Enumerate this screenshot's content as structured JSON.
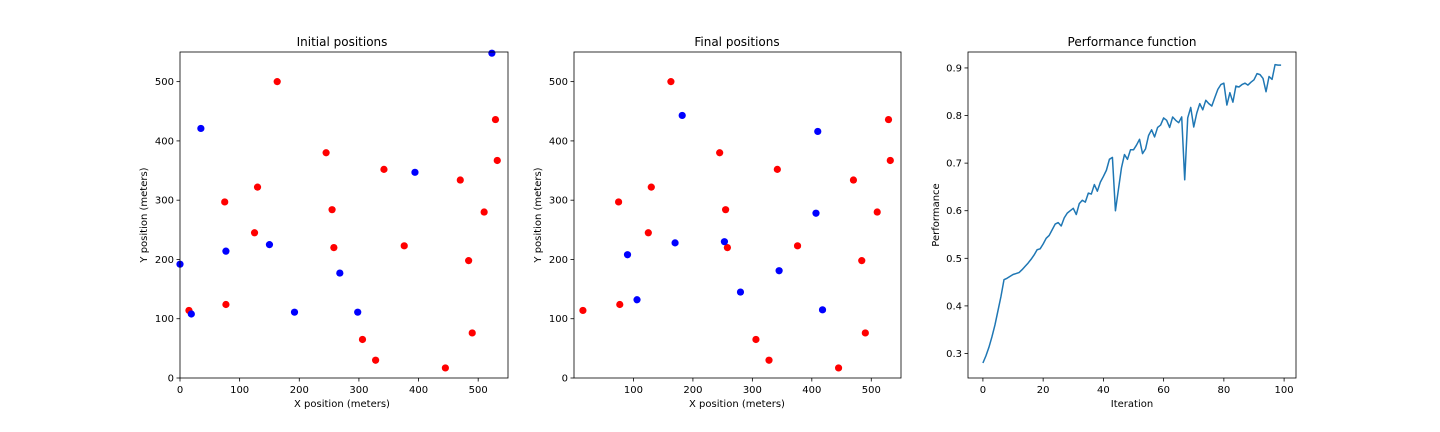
{
  "chart_data": [
    {
      "type": "scatter",
      "title": "Initial positions",
      "xlabel": "X position (meters)",
      "ylabel": "Y position (meters)",
      "xlim": [
        0,
        550
      ],
      "ylim": [
        0,
        550
      ],
      "xticks": [
        0,
        100,
        200,
        300,
        400,
        500
      ],
      "yticks": [
        0,
        100,
        200,
        300,
        400,
        500
      ],
      "series": [
        {
          "color": "#ff0000",
          "points": [
            [
              163,
              500
            ],
            [
              529,
              436
            ],
            [
              245,
              380
            ],
            [
              532,
              367
            ],
            [
              342,
              352
            ],
            [
              130,
              322
            ],
            [
              470,
              334
            ],
            [
              75,
              297
            ],
            [
              255,
              284
            ],
            [
              510,
              280
            ],
            [
              125,
              245
            ],
            [
              376,
              223
            ],
            [
              258,
              220
            ],
            [
              484,
              198
            ],
            [
              15,
              114
            ],
            [
              77,
              124
            ],
            [
              490,
              76
            ],
            [
              306,
              65
            ],
            [
              328,
              30
            ],
            [
              445,
              17
            ]
          ]
        },
        {
          "color": "#0000ff",
          "points": [
            [
              523,
              548
            ],
            [
              35,
              421
            ],
            [
              394,
              347
            ],
            [
              77,
              214
            ],
            [
              150,
              225
            ],
            [
              0,
              192
            ],
            [
              268,
              177
            ],
            [
              19,
              108
            ],
            [
              192,
              111
            ],
            [
              298,
              111
            ]
          ]
        }
      ]
    },
    {
      "type": "scatter",
      "title": "Final positions",
      "xlabel": "X position (meters)",
      "ylabel": "Y position (meters)",
      "xlim": [
        0,
        550
      ],
      "ylim": [
        0,
        550
      ],
      "xticks": [
        100,
        200,
        300,
        400,
        500
      ],
      "yticks": [
        0,
        100,
        200,
        300,
        400,
        500
      ],
      "series": [
        {
          "color": "#ff0000",
          "points": [
            [
              163,
              500
            ],
            [
              529,
              436
            ],
            [
              245,
              380
            ],
            [
              532,
              367
            ],
            [
              342,
              352
            ],
            [
              130,
              322
            ],
            [
              470,
              334
            ],
            [
              75,
              297
            ],
            [
              255,
              284
            ],
            [
              510,
              280
            ],
            [
              125,
              245
            ],
            [
              376,
              223
            ],
            [
              258,
              220
            ],
            [
              484,
              198
            ],
            [
              15,
              114
            ],
            [
              77,
              124
            ],
            [
              490,
              76
            ],
            [
              306,
              65
            ],
            [
              328,
              30
            ],
            [
              445,
              17
            ]
          ]
        },
        {
          "color": "#0000ff",
          "points": [
            [
              182,
              443
            ],
            [
              410,
              416
            ],
            [
              407,
              278
            ],
            [
              170,
              228
            ],
            [
              253,
              230
            ],
            [
              90,
              208
            ],
            [
              345,
              181
            ],
            [
              280,
              145
            ],
            [
              106,
              132
            ],
            [
              418,
              115
            ]
          ]
        }
      ]
    },
    {
      "type": "line",
      "title": "Performance function",
      "xlabel": "Iteration",
      "ylabel": "Performance",
      "xlim": [
        -4.95,
        103.95
      ],
      "ylim": [
        0.2485,
        0.9335
      ],
      "xticks": [
        0,
        20,
        40,
        60,
        80,
        100
      ],
      "yticks": [
        0.3,
        0.4,
        0.5,
        0.6,
        0.7,
        0.8,
        0.9
      ],
      "series": [
        {
          "color": "#1f77b4",
          "x": [
            0,
            1,
            2,
            3,
            4,
            5,
            6,
            7,
            8,
            9,
            10,
            11,
            12,
            13,
            14,
            15,
            16,
            17,
            18,
            19,
            20,
            21,
            22,
            23,
            24,
            25,
            26,
            27,
            28,
            29,
            30,
            31,
            32,
            33,
            34,
            35,
            36,
            37,
            38,
            39,
            40,
            41,
            42,
            43,
            44,
            45,
            46,
            47,
            48,
            49,
            50,
            51,
            52,
            53,
            54,
            55,
            56,
            57,
            58,
            59,
            60,
            61,
            62,
            63,
            64,
            65,
            66,
            67,
            68,
            69,
            70,
            71,
            72,
            73,
            74,
            75,
            76,
            77,
            78,
            79,
            80,
            81,
            82,
            83,
            84,
            85,
            86,
            87,
            88,
            89,
            90,
            91,
            92,
            93,
            94,
            95,
            96,
            97,
            98,
            99
          ],
          "y": [
            0.28,
            0.295,
            0.313,
            0.335,
            0.36,
            0.39,
            0.42,
            0.455,
            0.458,
            0.462,
            0.466,
            0.468,
            0.47,
            0.476,
            0.483,
            0.49,
            0.498,
            0.507,
            0.518,
            0.52,
            0.53,
            0.542,
            0.548,
            0.56,
            0.572,
            0.575,
            0.568,
            0.585,
            0.595,
            0.6,
            0.605,
            0.592,
            0.615,
            0.622,
            0.618,
            0.637,
            0.635,
            0.655,
            0.641,
            0.66,
            0.672,
            0.685,
            0.708,
            0.712,
            0.6,
            0.645,
            0.69,
            0.718,
            0.708,
            0.728,
            0.728,
            0.738,
            0.75,
            0.72,
            0.73,
            0.758,
            0.77,
            0.755,
            0.775,
            0.78,
            0.795,
            0.79,
            0.775,
            0.797,
            0.79,
            0.785,
            0.797,
            0.665,
            0.795,
            0.817,
            0.776,
            0.805,
            0.825,
            0.812,
            0.832,
            0.825,
            0.82,
            0.838,
            0.855,
            0.865,
            0.868,
            0.822,
            0.848,
            0.828,
            0.862,
            0.86,
            0.865,
            0.868,
            0.864,
            0.87,
            0.875,
            0.888,
            0.886,
            0.878,
            0.85,
            0.882,
            0.876,
            0.907,
            0.906,
            0.906
          ]
        }
      ]
    }
  ]
}
